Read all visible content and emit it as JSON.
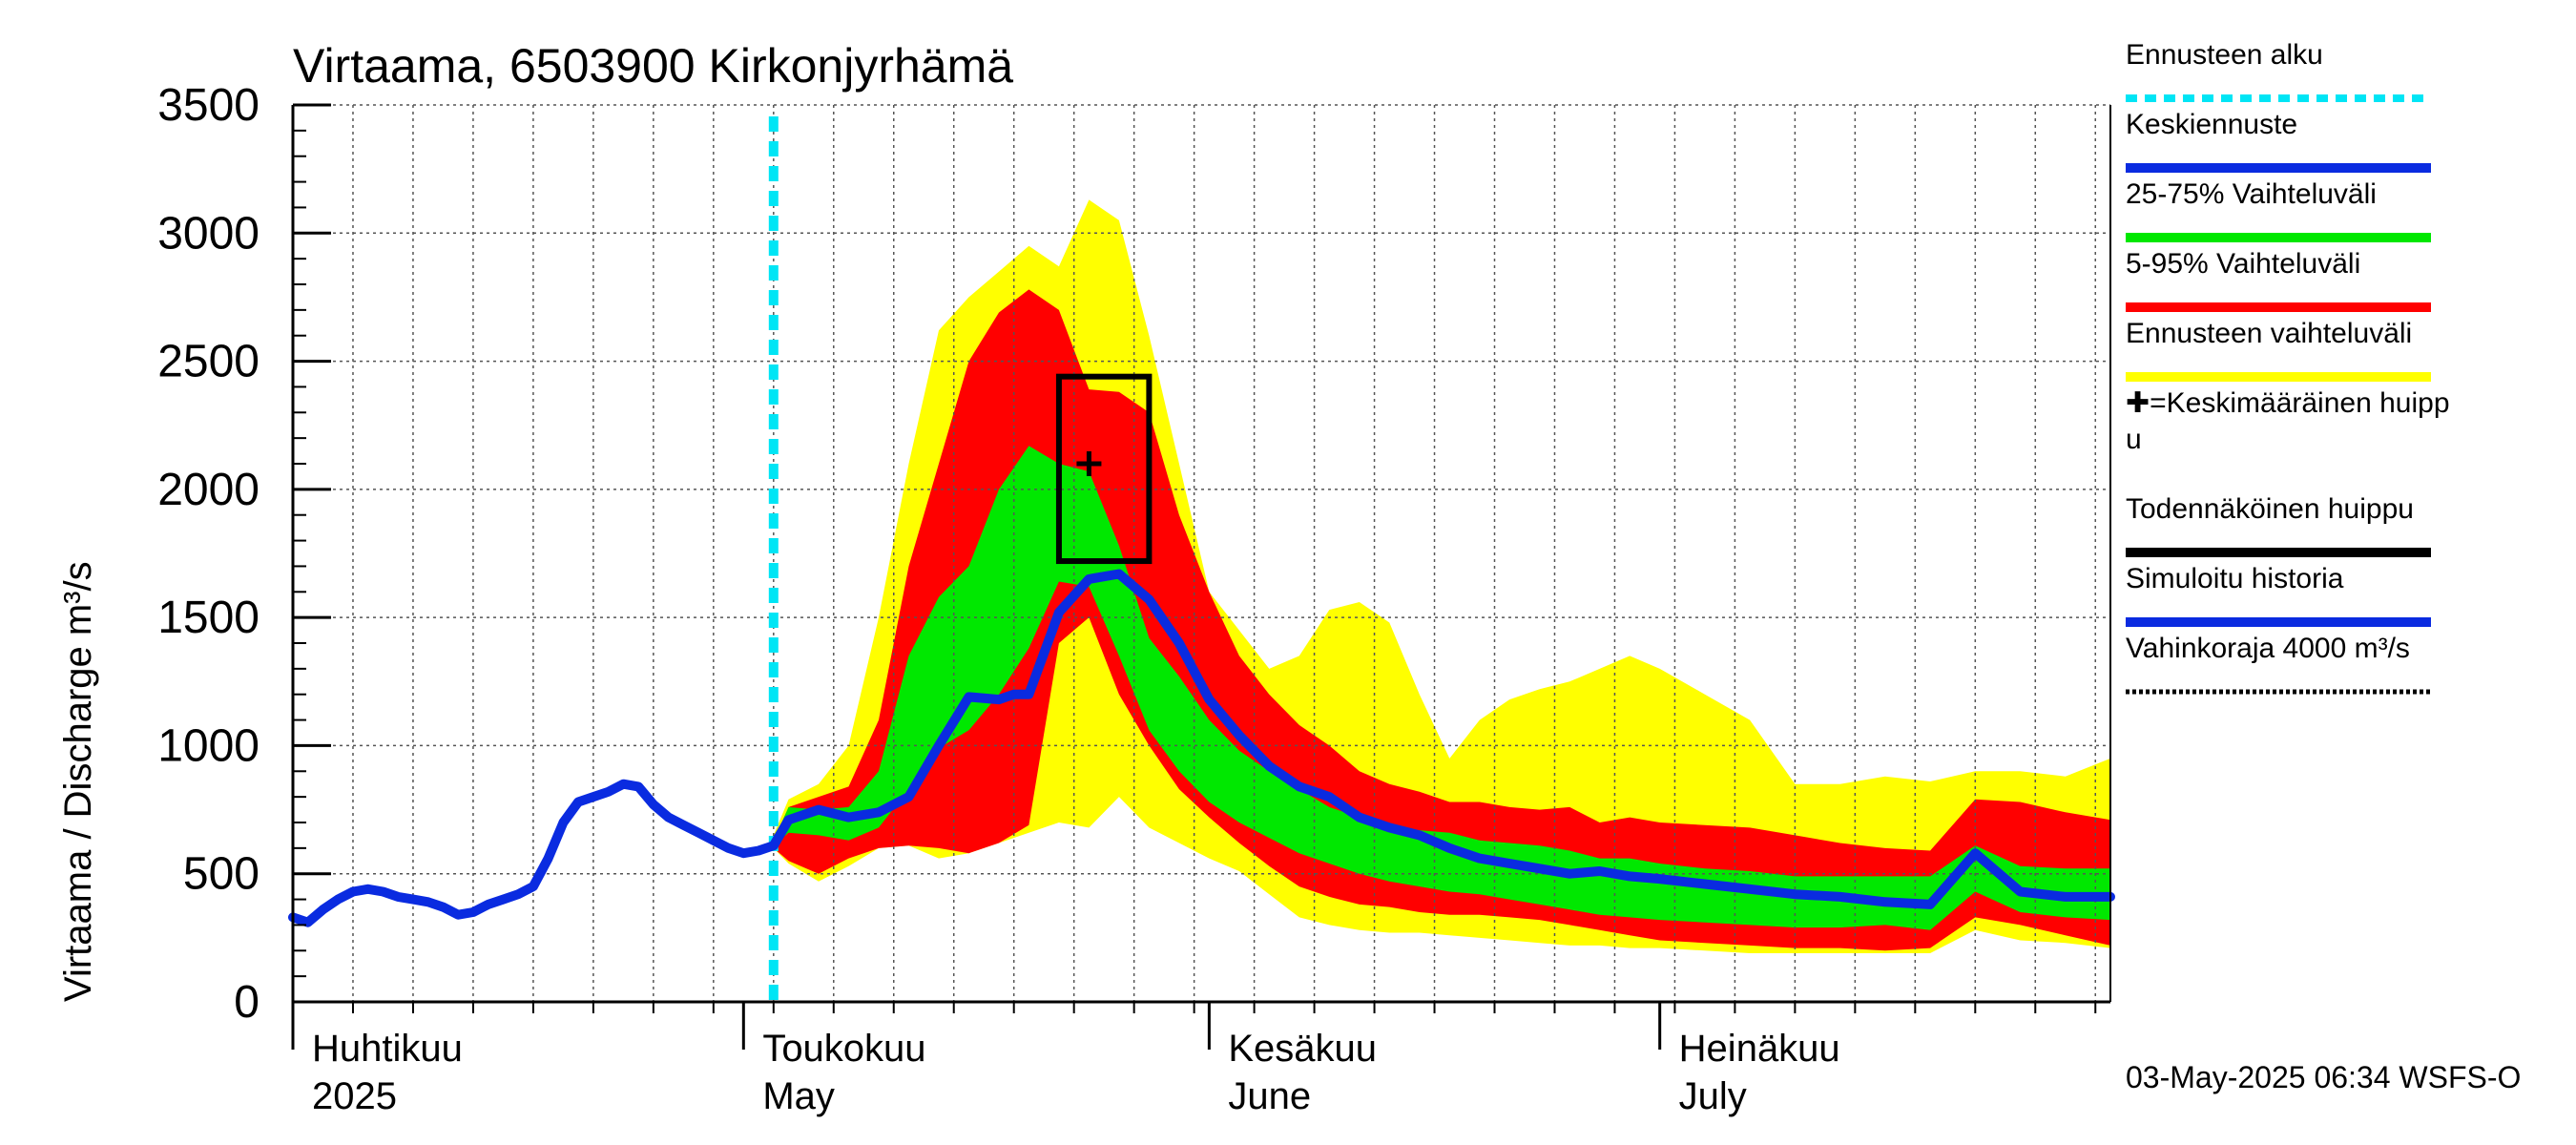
{
  "chart_data": {
    "type": "area",
    "title": "Virtaama, 6503900 Kirkonjyrhämä",
    "ylabel": "Virtaama / Discharge   m³/s",
    "ylim": [
      0,
      3500
    ],
    "yticks": [
      0,
      500,
      1000,
      1500,
      2000,
      2500,
      3000,
      3500
    ],
    "xlim": [
      "2025-04-01",
      "2025-07-31"
    ],
    "grid": true,
    "month_labels": [
      {
        "fi": "Huhtikuu",
        "en": "2025",
        "date": "2025-04-01"
      },
      {
        "fi": "Toukokuu",
        "en": "May",
        "date": "2025-05-01"
      },
      {
        "fi": "Kesäkuu",
        "en": "June",
        "date": "2025-06-01"
      },
      {
        "fi": "Heinäkuu",
        "en": "July",
        "date": "2025-07-01"
      }
    ],
    "forecast_start": "2025-05-03",
    "band_full": {
      "name": "Ennusteen vaihteluväli",
      "x": [
        "2025-05-03",
        "2025-05-04",
        "2025-05-06",
        "2025-05-08",
        "2025-05-10",
        "2025-05-12",
        "2025-05-14",
        "2025-05-16",
        "2025-05-18",
        "2025-05-20",
        "2025-05-22",
        "2025-05-24",
        "2025-05-26",
        "2025-05-28",
        "2025-05-30",
        "2025-06-01",
        "2025-06-03",
        "2025-06-05",
        "2025-06-07",
        "2025-06-09",
        "2025-06-11",
        "2025-06-13",
        "2025-06-15",
        "2025-06-17",
        "2025-06-19",
        "2025-06-21",
        "2025-06-23",
        "2025-06-25",
        "2025-06-27",
        "2025-06-29",
        "2025-07-01",
        "2025-07-04",
        "2025-07-07",
        "2025-07-10",
        "2025-07-13",
        "2025-07-16",
        "2025-07-19",
        "2025-07-22",
        "2025-07-25",
        "2025-07-28",
        "2025-07-31"
      ],
      "lower": [
        600,
        540,
        470,
        530,
        600,
        610,
        560,
        580,
        620,
        660,
        700,
        680,
        800,
        680,
        620,
        560,
        510,
        420,
        330,
        300,
        280,
        270,
        270,
        260,
        250,
        240,
        230,
        220,
        220,
        210,
        210,
        200,
        190,
        190,
        190,
        190,
        190,
        280,
        240,
        230,
        210
      ],
      "upper": [
        650,
        790,
        850,
        1000,
        1500,
        2100,
        2620,
        2750,
        2850,
        2950,
        2870,
        3130,
        3050,
        2600,
        2100,
        1600,
        1450,
        1300,
        1350,
        1530,
        1560,
        1480,
        1200,
        950,
        1100,
        1180,
        1220,
        1250,
        1300,
        1350,
        1300,
        1200,
        1100,
        850,
        850,
        880,
        860,
        900,
        900,
        880,
        950
      ]
    },
    "band_5_95": {
      "name": "5-95% Vaihteluväli",
      "x": [
        "2025-05-03",
        "2025-05-04",
        "2025-05-06",
        "2025-05-08",
        "2025-05-10",
        "2025-05-12",
        "2025-05-14",
        "2025-05-16",
        "2025-05-18",
        "2025-05-20",
        "2025-05-22",
        "2025-05-24",
        "2025-05-26",
        "2025-05-28",
        "2025-05-30",
        "2025-06-01",
        "2025-06-03",
        "2025-06-05",
        "2025-06-07",
        "2025-06-09",
        "2025-06-11",
        "2025-06-13",
        "2025-06-15",
        "2025-06-17",
        "2025-06-19",
        "2025-06-21",
        "2025-06-23",
        "2025-06-25",
        "2025-06-27",
        "2025-06-29",
        "2025-07-01",
        "2025-07-04",
        "2025-07-07",
        "2025-07-10",
        "2025-07-13",
        "2025-07-16",
        "2025-07-19",
        "2025-07-22",
        "2025-07-25",
        "2025-07-28",
        "2025-07-31"
      ],
      "lower": [
        600,
        550,
        500,
        560,
        600,
        610,
        600,
        580,
        620,
        690,
        1400,
        1500,
        1200,
        1000,
        830,
        720,
        620,
        530,
        450,
        410,
        380,
        370,
        350,
        340,
        340,
        330,
        320,
        300,
        280,
        260,
        240,
        230,
        220,
        210,
        210,
        200,
        210,
        330,
        300,
        260,
        220
      ],
      "upper": [
        620,
        760,
        800,
        840,
        1100,
        1700,
        2100,
        2500,
        2690,
        2780,
        2700,
        2390,
        2380,
        2300,
        1900,
        1600,
        1350,
        1200,
        1080,
        1000,
        900,
        850,
        820,
        780,
        780,
        760,
        750,
        760,
        700,
        720,
        700,
        690,
        680,
        650,
        620,
        600,
        590,
        790,
        780,
        740,
        710
      ]
    },
    "band_25_75": {
      "name": "25-75% Vaihteluväli",
      "x": [
        "2025-05-03",
        "2025-05-04",
        "2025-05-06",
        "2025-05-08",
        "2025-05-10",
        "2025-05-12",
        "2025-05-14",
        "2025-05-16",
        "2025-05-18",
        "2025-05-20",
        "2025-05-22",
        "2025-05-24",
        "2025-05-26",
        "2025-05-28",
        "2025-05-30",
        "2025-06-01",
        "2025-06-03",
        "2025-06-05",
        "2025-06-07",
        "2025-06-09",
        "2025-06-11",
        "2025-06-13",
        "2025-06-15",
        "2025-06-17",
        "2025-06-19",
        "2025-06-21",
        "2025-06-23",
        "2025-06-25",
        "2025-06-27",
        "2025-06-29",
        "2025-07-01",
        "2025-07-04",
        "2025-07-07",
        "2025-07-10",
        "2025-07-13",
        "2025-07-16",
        "2025-07-19",
        "2025-07-22",
        "2025-07-25",
        "2025-07-28",
        "2025-07-31"
      ],
      "lower": [
        610,
        660,
        650,
        630,
        680,
        830,
        990,
        1060,
        1200,
        1380,
        1640,
        1620,
        1350,
        1060,
        900,
        780,
        700,
        640,
        580,
        540,
        500,
        470,
        450,
        430,
        420,
        400,
        380,
        360,
        340,
        330,
        320,
        310,
        300,
        290,
        290,
        300,
        280,
        430,
        350,
        330,
        320
      ],
      "upper": [
        630,
        760,
        750,
        760,
        900,
        1350,
        1580,
        1700,
        2000,
        2170,
        2100,
        2070,
        1780,
        1420,
        1270,
        1100,
        980,
        900,
        830,
        760,
        720,
        680,
        670,
        660,
        630,
        620,
        610,
        590,
        560,
        560,
        540,
        520,
        510,
        490,
        490,
        490,
        490,
        610,
        530,
        520,
        520
      ]
    },
    "series": [
      {
        "name": "Simuloitu historia",
        "x": [
          "2025-04-01",
          "2025-04-02",
          "2025-04-03",
          "2025-04-04",
          "2025-04-05",
          "2025-04-06",
          "2025-04-07",
          "2025-04-08",
          "2025-04-09",
          "2025-04-10",
          "2025-04-11",
          "2025-04-12",
          "2025-04-13",
          "2025-04-14",
          "2025-04-15",
          "2025-04-16",
          "2025-04-17",
          "2025-04-18",
          "2025-04-19",
          "2025-04-20",
          "2025-04-21",
          "2025-04-22",
          "2025-04-23",
          "2025-04-24",
          "2025-04-25",
          "2025-04-26",
          "2025-04-27",
          "2025-04-28",
          "2025-04-29",
          "2025-04-30",
          "2025-05-01",
          "2025-05-02",
          "2025-05-03"
        ],
        "values": [
          330,
          310,
          360,
          400,
          430,
          440,
          430,
          410,
          400,
          390,
          370,
          340,
          350,
          380,
          400,
          420,
          450,
          560,
          700,
          780,
          800,
          820,
          850,
          840,
          770,
          720,
          690,
          660,
          630,
          600,
          580,
          590,
          610
        ]
      },
      {
        "name": "Keskiennuste",
        "x": [
          "2025-05-03",
          "2025-05-04",
          "2025-05-06",
          "2025-05-08",
          "2025-05-10",
          "2025-05-12",
          "2025-05-14",
          "2025-05-16",
          "2025-05-18",
          "2025-05-19",
          "2025-05-20",
          "2025-05-22",
          "2025-05-24",
          "2025-05-26",
          "2025-05-28",
          "2025-05-30",
          "2025-06-01",
          "2025-06-03",
          "2025-06-05",
          "2025-06-07",
          "2025-06-09",
          "2025-06-11",
          "2025-06-13",
          "2025-06-15",
          "2025-06-17",
          "2025-06-19",
          "2025-06-21",
          "2025-06-23",
          "2025-06-25",
          "2025-06-27",
          "2025-06-29",
          "2025-07-01",
          "2025-07-04",
          "2025-07-07",
          "2025-07-10",
          "2025-07-13",
          "2025-07-16",
          "2025-07-19",
          "2025-07-22",
          "2025-07-25",
          "2025-07-28",
          "2025-07-31"
        ],
        "values": [
          610,
          710,
          750,
          720,
          740,
          800,
          1000,
          1190,
          1180,
          1200,
          1200,
          1520,
          1650,
          1670,
          1570,
          1400,
          1180,
          1040,
          920,
          840,
          800,
          720,
          680,
          650,
          600,
          560,
          540,
          520,
          500,
          510,
          490,
          480,
          460,
          440,
          420,
          410,
          390,
          380,
          580,
          430,
          410,
          410
        ]
      }
    ],
    "peak_box": {
      "x0": "2025-05-22",
      "x1": "2025-05-28",
      "y0": 1720,
      "y1": 2440
    },
    "mean_peak": {
      "x": "2025-05-24",
      "y": 2100
    },
    "legend_position": "right",
    "legend": [
      {
        "label": "Ennusteen alku",
        "color": "#00e5f5",
        "style": "dotted"
      },
      {
        "label": "Keskiennuste",
        "color": "#0a2be0",
        "style": "solid"
      },
      {
        "label": "25-75% Vaihteluväli",
        "color": "#00e800",
        "style": "solid"
      },
      {
        "label": "5-95% Vaihteluväli",
        "color": "#ff0000",
        "style": "solid"
      },
      {
        "label": "Ennusteen vaihteluväli",
        "color": "#ffff00",
        "style": "solid"
      },
      {
        "label": "✚=Keskimääräinen huipp",
        "label_cont": "u",
        "color": "#000000",
        "style": "none"
      },
      {
        "label": "Todennäköinen huippu",
        "color": "#000000",
        "style": "solid"
      },
      {
        "label": "Simuloitu historia",
        "color": "#0a2be0",
        "style": "solid"
      },
      {
        "label": "Vahinkoraja 4000 m³/s",
        "color": "#000000",
        "style": "finedot"
      }
    ],
    "colors": {
      "full": "#ffff00",
      "p5_95": "#ff0000",
      "p25_75": "#00e800",
      "median": "#0a2be0",
      "forecast_start": "#00e5f5",
      "grid": "#555555"
    },
    "footer": "03-May-2025 06:34 WSFS-O"
  }
}
